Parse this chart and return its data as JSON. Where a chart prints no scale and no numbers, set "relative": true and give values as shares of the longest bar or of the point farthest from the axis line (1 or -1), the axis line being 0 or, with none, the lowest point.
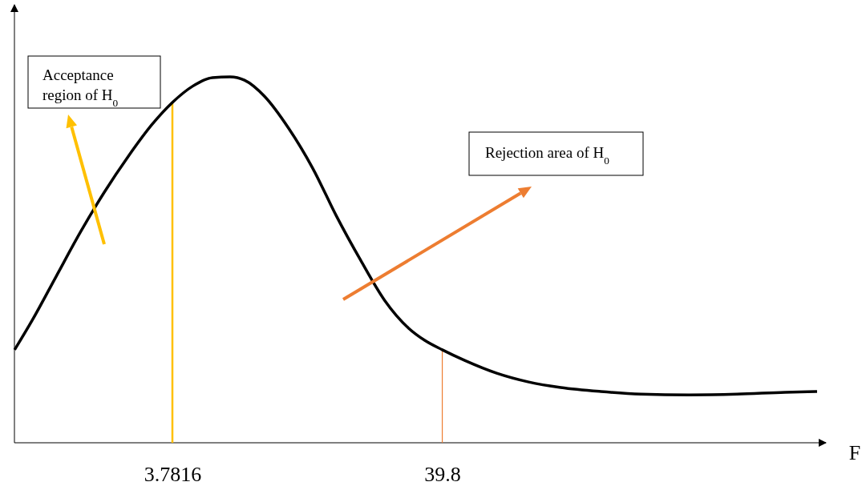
{
  "chart_data": {
    "type": "line",
    "relative": true,
    "xlabel": "F",
    "tick_labels": "x",
    "xlim": [
      -17.3,
      91
    ],
    "xticks": [
      3.7816,
      39.8
    ],
    "marker": "none",
    "line_style": "solid",
    "series": [
      {
        "color": "#000000",
        "x": [
          -17.28,
          -14.92,
          -11.72,
          -8.51,
          -5.3,
          -2.1,
          1.11,
          3.78,
          6.45,
          9.13,
          11.48,
          13.4,
          16.07,
          19.28,
          22.49,
          25.69,
          28.9,
          32.11,
          35.31,
          37.45,
          39.8,
          42.79,
          47.07,
          51.34,
          55.62,
          60.96,
          66.31,
          72.72,
          79.13,
          85.55,
          89.82
        ],
        "values": [
          0.254,
          0.335,
          0.455,
          0.575,
          0.685,
          0.783,
          0.871,
          0.93,
          0.974,
          0.998,
          1,
          0.991,
          0.947,
          0.86,
          0.751,
          0.619,
          0.499,
          0.389,
          0.313,
          0.28,
          0.254,
          0.225,
          0.19,
          0.166,
          0.151,
          0.14,
          0.133,
          0.131,
          0.133,
          0.138,
          0.14
        ]
      }
    ],
    "ref_lines": [
      {
        "axis": "x",
        "value": 3.7816,
        "color": "#ffc000"
      },
      {
        "axis": "x",
        "value": 39.8,
        "color": "#ed7d31"
      }
    ],
    "annotations": [
      "Acceptance region of H$_{0}$",
      "Rejection area of H$_{0}$"
    ]
  }
}
